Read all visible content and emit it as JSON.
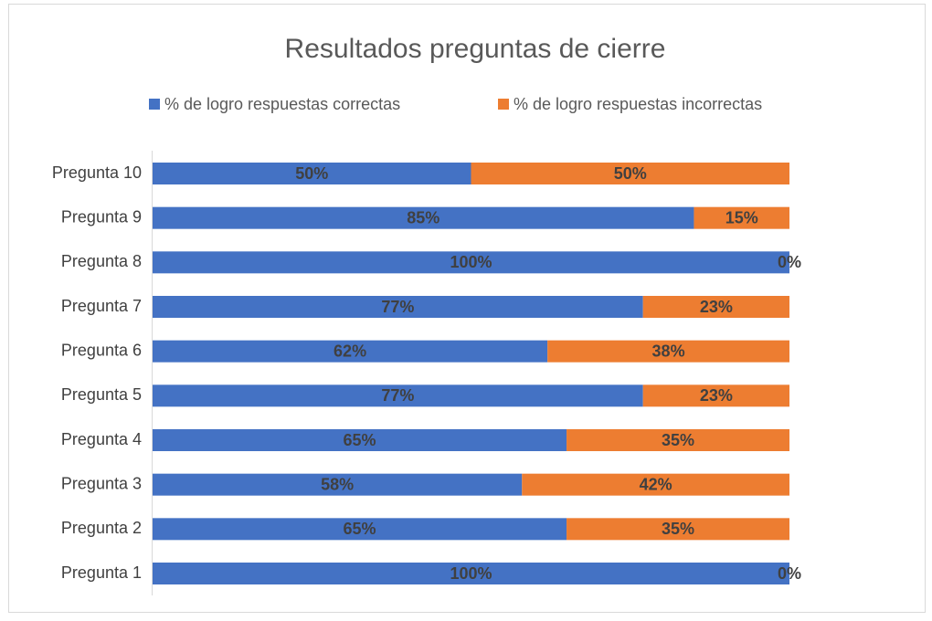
{
  "chart_data": {
    "type": "stacked-bar-horizontal",
    "title": "Resultados preguntas de cierre",
    "categories": [
      "Pregunta 1",
      "Pregunta 2",
      "Pregunta 3",
      "Pregunta 4",
      "Pregunta 5",
      "Pregunta 6",
      "Pregunta 7",
      "Pregunta 8",
      "Pregunta 9",
      "Pregunta 10"
    ],
    "series": [
      {
        "name": "% de logro respuestas correctas",
        "color": "#4472c4",
        "values": [
          100,
          65,
          58,
          65,
          77,
          62,
          77,
          100,
          85,
          50
        ],
        "value_labels": [
          "100%",
          "65%",
          "58%",
          "65%",
          "77%",
          "62%",
          "77%",
          "100%",
          "85%",
          "50%"
        ]
      },
      {
        "name": "% de logro respuestas incorrectas",
        "color": "#ed7d31",
        "values": [
          0,
          35,
          42,
          35,
          23,
          38,
          23,
          0,
          15,
          50
        ],
        "value_labels": [
          "0%",
          "35%",
          "42%",
          "35%",
          "23%",
          "38%",
          "23%",
          "0%",
          "15%",
          "50%"
        ]
      }
    ],
    "legend": "top"
  }
}
